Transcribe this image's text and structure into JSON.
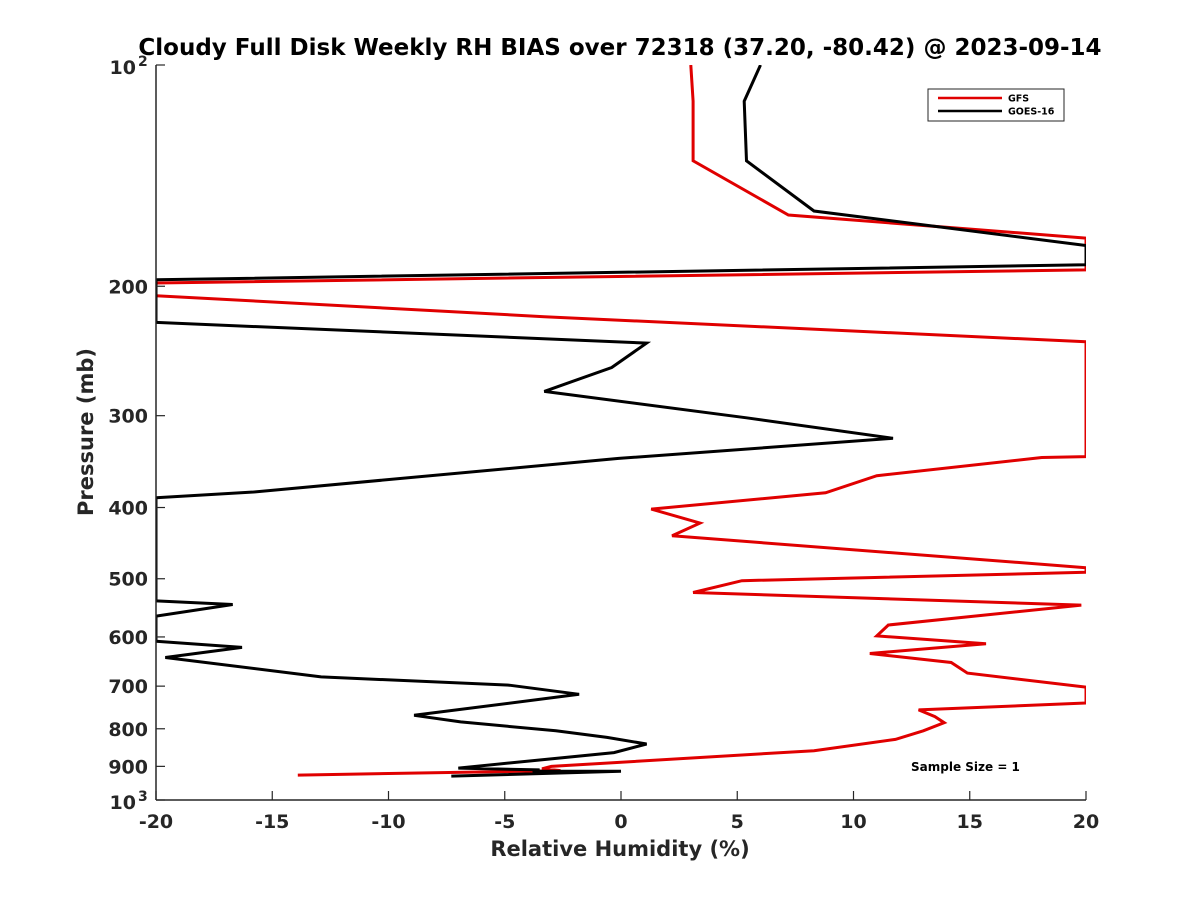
{
  "chart_data": {
    "type": "line",
    "title": "Cloudy Full Disk Weekly RH BIAS over 72318 (37.20, -80.42) @ 2023-09-14",
    "xlabel": "Relative Humidity (%)",
    "ylabel": "Pressure (mb)",
    "xlim": [
      -20,
      20
    ],
    "ylim": [
      100,
      1000
    ],
    "yscale": "log",
    "yreversed": true,
    "grid": false,
    "legend_position": "top-right",
    "x_ticks": [
      -20,
      -15,
      -10,
      -5,
      0,
      5,
      10,
      15,
      20
    ],
    "x_tick_labels": [
      "-20",
      "-15",
      "-10",
      "-5",
      "0",
      "5",
      "10",
      "15",
      "20"
    ],
    "y_ticks": [
      200,
      300,
      400,
      500,
      600,
      700,
      800,
      900
    ],
    "y_tick_labels": [
      "200",
      "300",
      "400",
      "500",
      "600",
      "700",
      "800",
      "900"
    ],
    "y_decade_labels": [
      {
        "value": 100,
        "base": "10",
        "exp": "2"
      },
      {
        "value": 1000,
        "base": "10",
        "exp": "3"
      }
    ],
    "annotation": "Sample Size = 1",
    "series": [
      {
        "name": "GFS",
        "color": "#e00000",
        "points": [
          [
            3.0,
            100
          ],
          [
            3.1,
            112
          ],
          [
            3.1,
            135
          ],
          [
            7.2,
            160
          ],
          [
            20.0,
            172
          ],
          [
            20.0,
            190
          ],
          [
            -20.0,
            198
          ],
          [
            -20.0,
            206
          ],
          [
            -3.3,
            220
          ],
          [
            20.0,
            238
          ],
          [
            20.0,
            341
          ],
          [
            18.1,
            342
          ],
          [
            11.0,
            362
          ],
          [
            8.8,
            382
          ],
          [
            1.3,
            402
          ],
          [
            3.4,
            420
          ],
          [
            2.2,
            437
          ],
          [
            20.0,
            483
          ],
          [
            20.0,
            490
          ],
          [
            5.2,
            503
          ],
          [
            3.1,
            522
          ],
          [
            19.8,
            543
          ],
          [
            11.5,
            578
          ],
          [
            11.0,
            598
          ],
          [
            15.7,
            613
          ],
          [
            10.7,
            632
          ],
          [
            14.2,
            650
          ],
          [
            14.9,
            672
          ],
          [
            20.0,
            702
          ],
          [
            20.0,
            738
          ],
          [
            12.8,
            754
          ],
          [
            13.5,
            770
          ],
          [
            13.9,
            785
          ],
          [
            13.0,
            805
          ],
          [
            11.8,
            827
          ],
          [
            8.3,
            857
          ],
          [
            -3.0,
            900
          ],
          [
            -3.4,
            907
          ],
          [
            -2.6,
            912
          ],
          [
            -13.9,
            925
          ]
        ]
      },
      {
        "name": "GOES-16",
        "color": "#000000",
        "points": [
          [
            6.0,
            100
          ],
          [
            5.3,
            112
          ],
          [
            5.4,
            135
          ],
          [
            8.3,
            158
          ],
          [
            20.0,
            176
          ],
          [
            20.0,
            187
          ],
          [
            -20.0,
            196
          ],
          [
            -20.0,
            224
          ],
          [
            1.1,
            239
          ],
          [
            -0.4,
            258
          ],
          [
            -3.3,
            278
          ],
          [
            5.4,
            302
          ],
          [
            11.7,
            322
          ],
          [
            -0.1,
            343
          ],
          [
            -15.8,
            381
          ],
          [
            -20.0,
            388
          ],
          [
            -20.0,
            536
          ],
          [
            -16.7,
            542
          ],
          [
            -20.0,
            562
          ],
          [
            -20.0,
            608
          ],
          [
            -16.3,
            620
          ],
          [
            -19.6,
            640
          ],
          [
            -12.9,
            680
          ],
          [
            -4.8,
            698
          ],
          [
            -1.8,
            718
          ],
          [
            -8.9,
            767
          ],
          [
            -6.9,
            783
          ],
          [
            -2.8,
            805
          ],
          [
            -0.6,
            822
          ],
          [
            1.1,
            839
          ],
          [
            -0.3,
            862
          ],
          [
            -7.0,
            905
          ],
          [
            -3.5,
            910
          ],
          [
            -3.8,
            914
          ],
          [
            0.0,
            914
          ],
          [
            -7.3,
            928
          ]
        ]
      }
    ]
  }
}
